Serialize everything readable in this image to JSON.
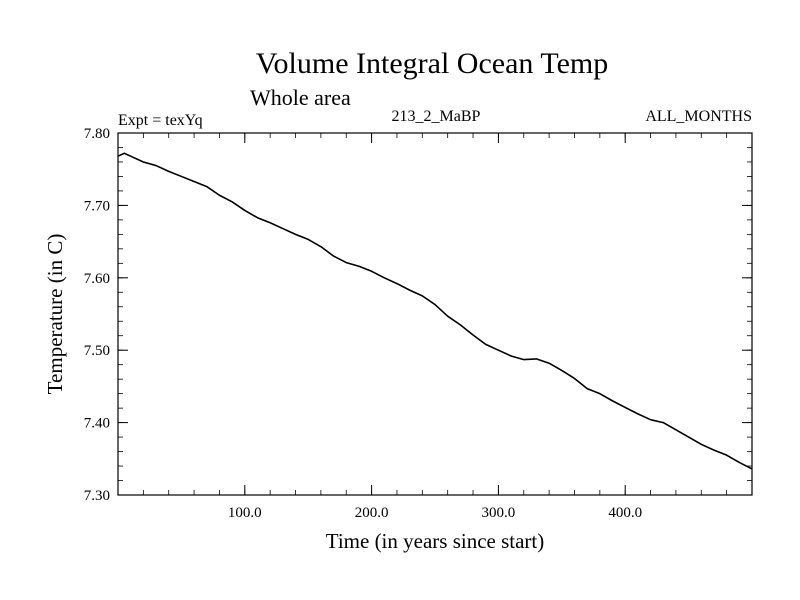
{
  "chart_data": {
    "type": "line",
    "title": "Volume Integral Ocean Temp",
    "subtitle": "Whole area",
    "experiment_label": "Expt = texYq",
    "run_label": "213_2_MaBP",
    "period_label": "ALL_MONTHS",
    "xlabel": "Time (in years since start)",
    "ylabel": "Temperature (in C)",
    "xlim": [
      0,
      500
    ],
    "ylim": [
      7.3,
      7.8
    ],
    "xticks": [
      100,
      200,
      300,
      400
    ],
    "xtick_labels": [
      "100.0",
      "200.0",
      "300.0",
      "400.0"
    ],
    "yticks": [
      7.3,
      7.4,
      7.5,
      7.6,
      7.7,
      7.8
    ],
    "ytick_labels": [
      "7.30",
      "7.40",
      "7.50",
      "7.60",
      "7.70",
      "7.80"
    ],
    "grid": false,
    "line_color": "#000000",
    "series": [
      {
        "x": [
          0,
          5,
          10,
          20,
          30,
          40,
          50,
          60,
          70,
          80,
          90,
          100,
          110,
          120,
          130,
          140,
          150,
          160,
          170,
          180,
          190,
          200,
          210,
          220,
          230,
          240,
          250,
          260,
          270,
          280,
          290,
          300,
          310,
          320,
          330,
          340,
          350,
          360,
          370,
          380,
          390,
          400,
          410,
          420,
          430,
          440,
          450,
          460,
          470,
          480,
          490,
          500
        ],
        "values": [
          7.768,
          7.772,
          7.768,
          7.76,
          7.755,
          7.747,
          7.74,
          7.733,
          7.726,
          7.714,
          7.705,
          7.693,
          7.683,
          7.676,
          7.668,
          7.66,
          7.653,
          7.643,
          7.63,
          7.621,
          7.616,
          7.609,
          7.6,
          7.592,
          7.583,
          7.575,
          7.563,
          7.547,
          7.535,
          7.521,
          7.508,
          7.5,
          7.492,
          7.487,
          7.488,
          7.482,
          7.472,
          7.461,
          7.447,
          7.44,
          7.43,
          7.421,
          7.412,
          7.404,
          7.4,
          7.39,
          7.38,
          7.37,
          7.362,
          7.355,
          7.345,
          7.336
        ]
      }
    ]
  }
}
